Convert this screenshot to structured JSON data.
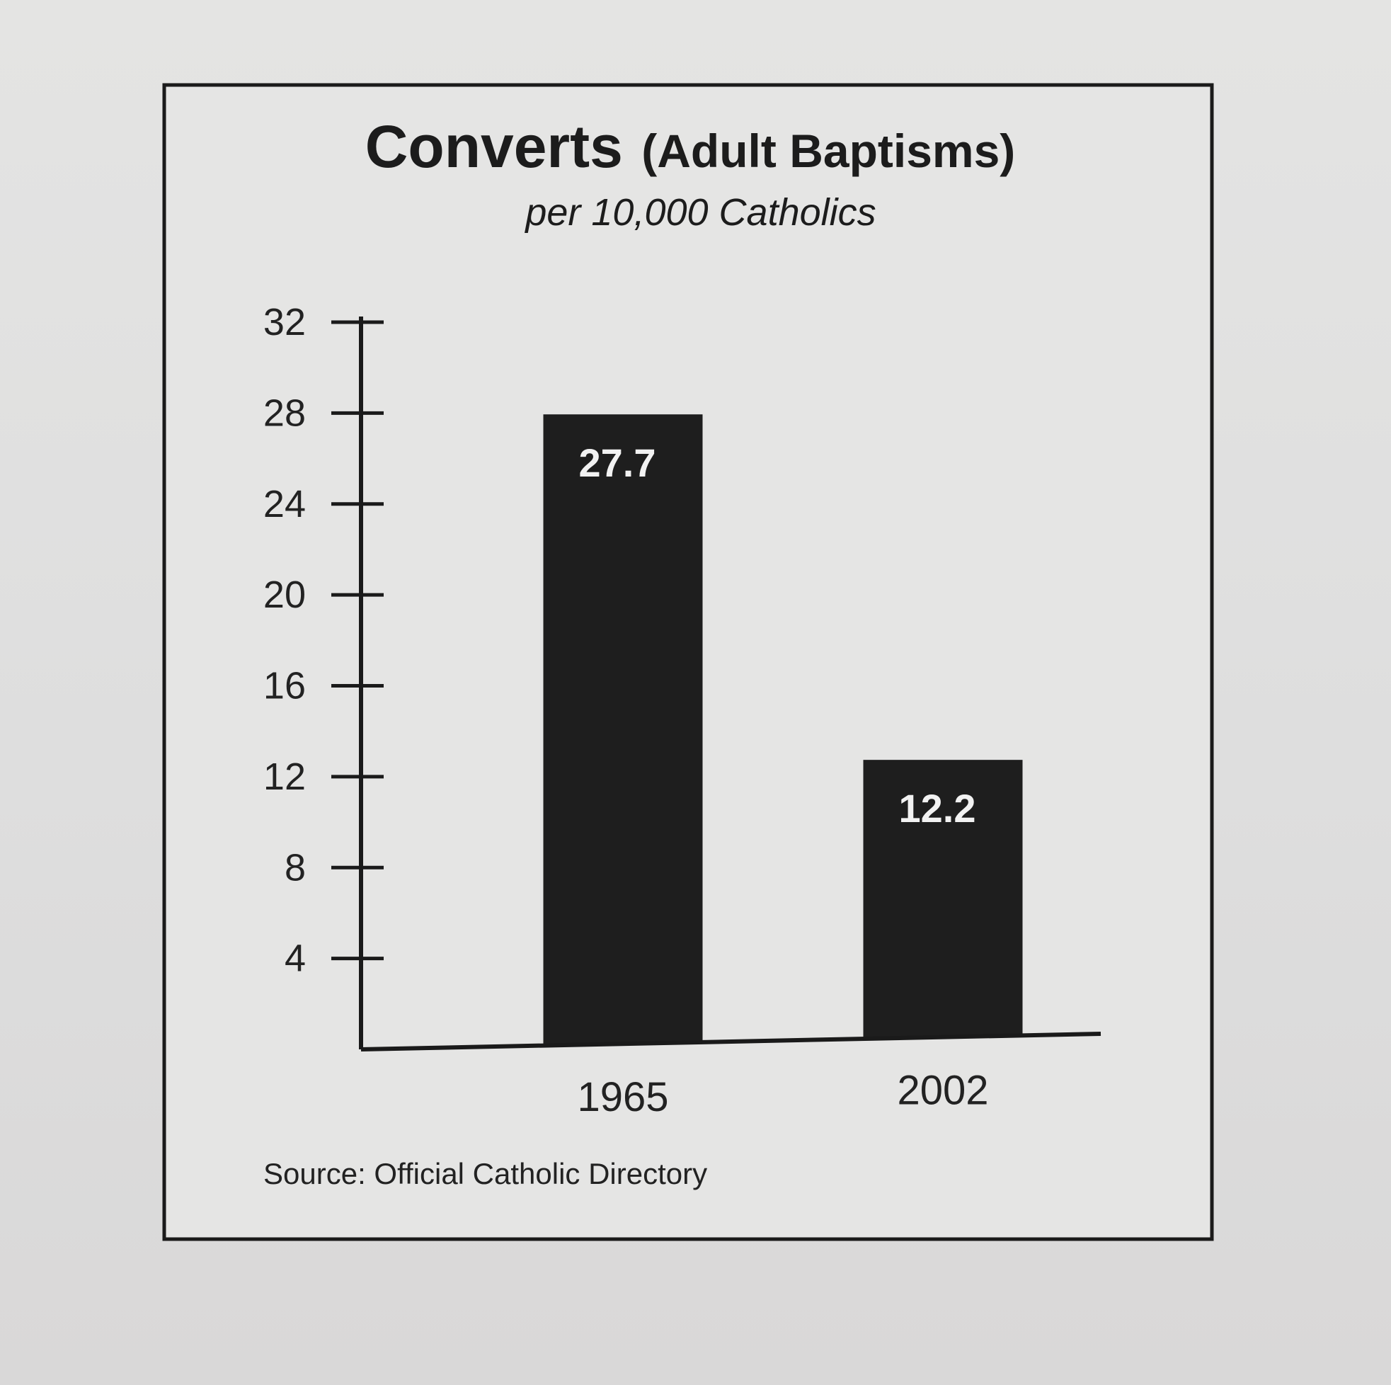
{
  "chart_data": {
    "type": "bar",
    "title": "Converts",
    "title_parenthetical": "(Adult Baptisms)",
    "subtitle": "per 10,000 Catholics",
    "categories": [
      "1965",
      "2002"
    ],
    "values": [
      27.7,
      12.2
    ],
    "data_labels": [
      "27.7",
      "12.2"
    ],
    "yticks": [
      4,
      8,
      12,
      16,
      20,
      24,
      28,
      32
    ],
    "ylim": [
      0,
      32
    ],
    "grid": false,
    "bar_color": "#1e1e1e",
    "source": "Source: Official Catholic Directory"
  }
}
